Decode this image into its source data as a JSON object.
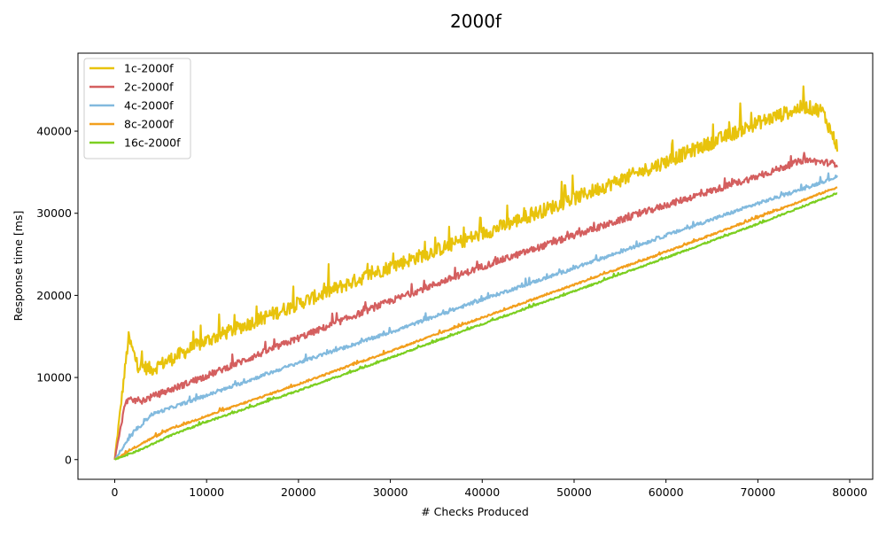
{
  "chart_data": {
    "type": "line",
    "title": "2000f",
    "xlabel": "# Checks Produced",
    "ylabel": "Response time [ms]",
    "xlim": [
      -4000,
      82500
    ],
    "ylim": [
      -2400,
      49500
    ],
    "x_ticks": [
      0,
      10000,
      20000,
      30000,
      40000,
      50000,
      60000,
      70000,
      80000
    ],
    "y_ticks": [
      0,
      10000,
      20000,
      30000,
      40000
    ],
    "grid": false,
    "legend_position": "top-left",
    "series": [
      {
        "name": "1c-2000f",
        "color": "#e8c30c",
        "noise": 1700,
        "points": [
          [
            0,
            0
          ],
          [
            1500,
            14800
          ],
          [
            2500,
            11500
          ],
          [
            4000,
            11000
          ],
          [
            10000,
            14500
          ],
          [
            20000,
            19000
          ],
          [
            30000,
            23500
          ],
          [
            40000,
            27500
          ],
          [
            50000,
            31800
          ],
          [
            60000,
            36300
          ],
          [
            70000,
            41000
          ],
          [
            75000,
            43000
          ],
          [
            77000,
            42500
          ],
          [
            78700,
            38000
          ]
        ]
      },
      {
        "name": "2c-2000f",
        "color": "#d45f5f",
        "noise": 800,
        "points": [
          [
            0,
            0
          ],
          [
            1200,
            7200
          ],
          [
            3000,
            7200
          ],
          [
            10000,
            10200
          ],
          [
            20000,
            14800
          ],
          [
            30000,
            19300
          ],
          [
            40000,
            23500
          ],
          [
            50000,
            27300
          ],
          [
            60000,
            31000
          ],
          [
            70000,
            34500
          ],
          [
            75000,
            36500
          ],
          [
            78700,
            36000
          ]
        ]
      },
      {
        "name": "4c-2000f",
        "color": "#82bade",
        "noise": 400,
        "points": [
          [
            0,
            0
          ],
          [
            2000,
            3200
          ],
          [
            4000,
            5500
          ],
          [
            10000,
            7800
          ],
          [
            20000,
            11800
          ],
          [
            30000,
            15500
          ],
          [
            40000,
            19500
          ],
          [
            50000,
            23300
          ],
          [
            60000,
            27300
          ],
          [
            70000,
            31200
          ],
          [
            75000,
            33000
          ],
          [
            78700,
            34500
          ]
        ]
      },
      {
        "name": "8c-2000f",
        "color": "#f29f1d",
        "noise": 220,
        "points": [
          [
            0,
            0
          ],
          [
            3000,
            2000
          ],
          [
            6000,
            3700
          ],
          [
            10000,
            5300
          ],
          [
            20000,
            9200
          ],
          [
            30000,
            13200
          ],
          [
            40000,
            17300
          ],
          [
            50000,
            21300
          ],
          [
            60000,
            25300
          ],
          [
            70000,
            29500
          ],
          [
            78700,
            33200
          ]
        ]
      },
      {
        "name": "16c-2000f",
        "color": "#7ccf21",
        "noise": 180,
        "points": [
          [
            0,
            0
          ],
          [
            3000,
            1300
          ],
          [
            6000,
            2900
          ],
          [
            10000,
            4600
          ],
          [
            20000,
            8400
          ],
          [
            30000,
            12400
          ],
          [
            40000,
            16500
          ],
          [
            50000,
            20500
          ],
          [
            60000,
            24600
          ],
          [
            70000,
            28700
          ],
          [
            78700,
            32500
          ]
        ]
      }
    ]
  }
}
